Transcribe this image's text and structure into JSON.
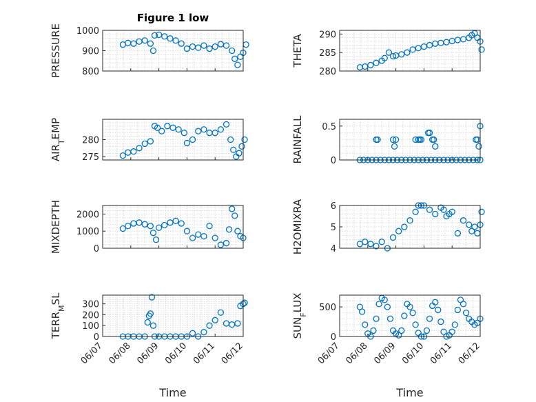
{
  "figure_title": "Figure 1 low",
  "xlabel": "Time",
  "x_tick_labels": [
    "06/07",
    "06/08",
    "06/09",
    "06/10",
    "06/11",
    "06/12"
  ],
  "marker_color": "#0072bd",
  "chart_data": [
    {
      "type": "scatter",
      "id": "pressure",
      "ylabel": "PRESSURE",
      "ylabel_sub": "",
      "ylim": [
        800,
        1000
      ],
      "yticks": [
        800,
        900,
        1000
      ],
      "x": [
        0.72,
        0.9,
        1.1,
        1.3,
        1.5,
        1.7,
        1.8,
        1.85,
        2.0,
        2.2,
        2.4,
        2.6,
        2.8,
        3.0,
        3.2,
        3.4,
        3.6,
        3.8,
        4.0,
        4.2,
        4.4,
        4.6,
        4.7,
        4.8,
        4.9,
        5.0,
        5.1
      ],
      "y": [
        930,
        938,
        935,
        945,
        950,
        935,
        900,
        975,
        978,
        970,
        960,
        950,
        935,
        910,
        920,
        915,
        925,
        910,
        920,
        932,
        925,
        900,
        860,
        830,
        870,
        890,
        930
      ]
    },
    {
      "type": "scatter",
      "id": "theta",
      "ylabel": "THETA",
      "ylabel_sub": "",
      "ylim": [
        280,
        291
      ],
      "yticks": [
        280,
        285,
        290
      ],
      "x": [
        0.72,
        0.9,
        1.1,
        1.3,
        1.5,
        1.6,
        1.75,
        1.9,
        2.0,
        2.2,
        2.4,
        2.6,
        2.8,
        3.0,
        3.2,
        3.4,
        3.6,
        3.8,
        4.0,
        4.2,
        4.4,
        4.6,
        4.7,
        4.8,
        4.9,
        5.0,
        5.05
      ],
      "y": [
        281,
        281.2,
        281.6,
        282.2,
        282.8,
        283.5,
        285,
        284,
        284.2,
        284.5,
        285,
        285.8,
        286.2,
        286.6,
        287,
        287.4,
        287.6,
        287.8,
        288.1,
        288.4,
        288.6,
        289,
        289.7,
        290.2,
        289,
        288,
        285.8
      ]
    },
    {
      "type": "scatter",
      "id": "air_temp",
      "ylabel": "AIR",
      "ylabel_sub": "T",
      "ylabel_rest": "EMP",
      "ylim": [
        274,
        286
      ],
      "yticks": [
        275,
        280
      ],
      "x": [
        0.72,
        0.9,
        1.1,
        1.3,
        1.5,
        1.7,
        1.85,
        1.95,
        2.1,
        2.3,
        2.5,
        2.7,
        2.9,
        3.0,
        3.2,
        3.4,
        3.6,
        3.8,
        4.0,
        4.2,
        4.4,
        4.55,
        4.65,
        4.75,
        4.85,
        4.95,
        5.05
      ],
      "y": [
        275.3,
        276.2,
        276.5,
        277.5,
        278.8,
        279.5,
        284,
        283.5,
        282.5,
        284,
        283.5,
        283,
        282,
        279,
        280,
        282.5,
        283,
        282,
        282,
        283,
        284.5,
        280,
        277,
        275,
        276,
        278,
        280
      ]
    },
    {
      "type": "scatter",
      "id": "rainfall",
      "ylabel": "RAINFALL",
      "ylabel_sub": "",
      "ylim": [
        0,
        0.6
      ],
      "yticks": [
        0,
        0.5
      ],
      "x": [
        0.72,
        0.85,
        1.0,
        1.15,
        1.3,
        1.45,
        1.6,
        1.75,
        1.9,
        2.05,
        2.2,
        2.35,
        2.5,
        2.65,
        2.8,
        2.95,
        3.1,
        3.25,
        3.4,
        3.55,
        3.7,
        3.85,
        4.0,
        4.15,
        4.3,
        4.45,
        4.6,
        4.75,
        4.9,
        5.0,
        1.3,
        1.35,
        1.9,
        2.0,
        2.7,
        2.8,
        2.85,
        2.9,
        3.15,
        3.2,
        3.3,
        3.4,
        4.85,
        4.9,
        4.95,
        5.0,
        1.95,
        3.35
      ],
      "y": [
        0,
        0,
        0,
        0,
        0,
        0,
        0,
        0,
        0,
        0,
        0,
        0,
        0,
        0,
        0,
        0,
        0,
        0,
        0,
        0,
        0,
        0,
        0,
        0,
        0,
        0,
        0,
        0,
        0,
        0,
        0.3,
        0.3,
        0.3,
        0.3,
        0.3,
        0.3,
        0.3,
        0.3,
        0.4,
        0.4,
        0.3,
        0.2,
        0.3,
        0.3,
        0.2,
        0.5,
        0.2,
        0.3
      ]
    },
    {
      "type": "scatter",
      "id": "mixdepth",
      "ylabel": "MIXDEPTH",
      "ylabel_sub": "",
      "ylim": [
        0,
        2500
      ],
      "yticks": [
        0,
        1000,
        2000
      ],
      "x": [
        0.72,
        0.9,
        1.1,
        1.3,
        1.5,
        1.7,
        1.8,
        1.9,
        2.0,
        2.2,
        2.4,
        2.6,
        2.8,
        3.0,
        3.2,
        3.4,
        3.6,
        3.8,
        4.0,
        4.2,
        4.4,
        4.5,
        4.6,
        4.7,
        4.8,
        4.9,
        5.0
      ],
      "y": [
        1150,
        1300,
        1450,
        1500,
        1400,
        1300,
        900,
        500,
        1200,
        1350,
        1500,
        1600,
        1450,
        1000,
        600,
        800,
        700,
        1300,
        600,
        200,
        300,
        1100,
        2300,
        1900,
        1000,
        700,
        600
      ]
    },
    {
      "type": "scatter",
      "id": "h2omixra",
      "ylabel": "H2OMIXRA",
      "ylabel_sub": "",
      "ylim": [
        4,
        6
      ],
      "yticks": [
        4,
        5,
        6
      ],
      "x": [
        0.72,
        0.9,
        1.1,
        1.3,
        1.5,
        1.7,
        1.9,
        2.1,
        2.3,
        2.5,
        2.7,
        2.8,
        2.9,
        3.0,
        3.2,
        3.4,
        3.6,
        3.7,
        3.8,
        3.9,
        4.0,
        4.2,
        4.4,
        4.6,
        4.7,
        4.8,
        4.9,
        5.0,
        5.05
      ],
      "y": [
        4.2,
        4.3,
        4.2,
        4.1,
        4.3,
        4.0,
        4.5,
        4.8,
        5.0,
        5.3,
        5.7,
        6.0,
        6.0,
        6.0,
        5.8,
        5.6,
        5.9,
        5.8,
        5.5,
        5.6,
        5.7,
        4.7,
        5.3,
        5.1,
        4.8,
        5.0,
        4.7,
        5.1,
        5.7
      ]
    },
    {
      "type": "scatter",
      "id": "terr_msl",
      "ylabel": "TERR",
      "ylabel_sub": "M",
      "ylabel_rest": "SL",
      "ylim": [
        0,
        380
      ],
      "yticks": [
        0,
        100,
        200,
        300
      ],
      "x": [
        0.72,
        0.9,
        1.1,
        1.3,
        1.5,
        1.6,
        1.65,
        1.7,
        1.75,
        1.8,
        1.85,
        2.0,
        2.2,
        2.4,
        2.6,
        2.8,
        3.0,
        3.2,
        3.4,
        3.6,
        3.8,
        4.0,
        4.2,
        4.4,
        4.6,
        4.8,
        4.9,
        5.0,
        5.05
      ],
      "y": [
        0,
        0,
        0,
        0,
        0,
        130,
        190,
        210,
        360,
        100,
        0,
        0,
        0,
        0,
        0,
        0,
        0,
        30,
        0,
        40,
        100,
        150,
        220,
        120,
        110,
        120,
        280,
        300,
        310
      ]
    },
    {
      "type": "scatter",
      "id": "sun_flux",
      "ylabel": "SUN",
      "ylabel_sub": "F",
      "ylabel_rest": "LUX",
      "ylim": [
        0,
        700
      ],
      "yticks": [
        0,
        500
      ],
      "x": [
        0.72,
        0.8,
        0.9,
        1.0,
        1.1,
        1.2,
        1.3,
        1.4,
        1.5,
        1.6,
        1.7,
        1.8,
        1.9,
        2.0,
        2.1,
        2.2,
        2.3,
        2.4,
        2.5,
        2.6,
        2.7,
        2.8,
        2.9,
        3.0,
        3.1,
        3.2,
        3.3,
        3.4,
        3.5,
        3.6,
        3.7,
        3.8,
        3.9,
        4.0,
        4.1,
        4.2,
        4.3,
        4.4,
        4.5,
        4.6,
        4.7,
        4.8,
        4.9,
        5.0
      ],
      "y": [
        500,
        420,
        200,
        50,
        0,
        100,
        300,
        550,
        650,
        620,
        500,
        300,
        100,
        50,
        20,
        100,
        350,
        550,
        500,
        400,
        200,
        60,
        0,
        0,
        100,
        300,
        520,
        580,
        450,
        250,
        80,
        0,
        20,
        80,
        200,
        450,
        620,
        550,
        400,
        300,
        250,
        200,
        230,
        300
      ]
    }
  ]
}
